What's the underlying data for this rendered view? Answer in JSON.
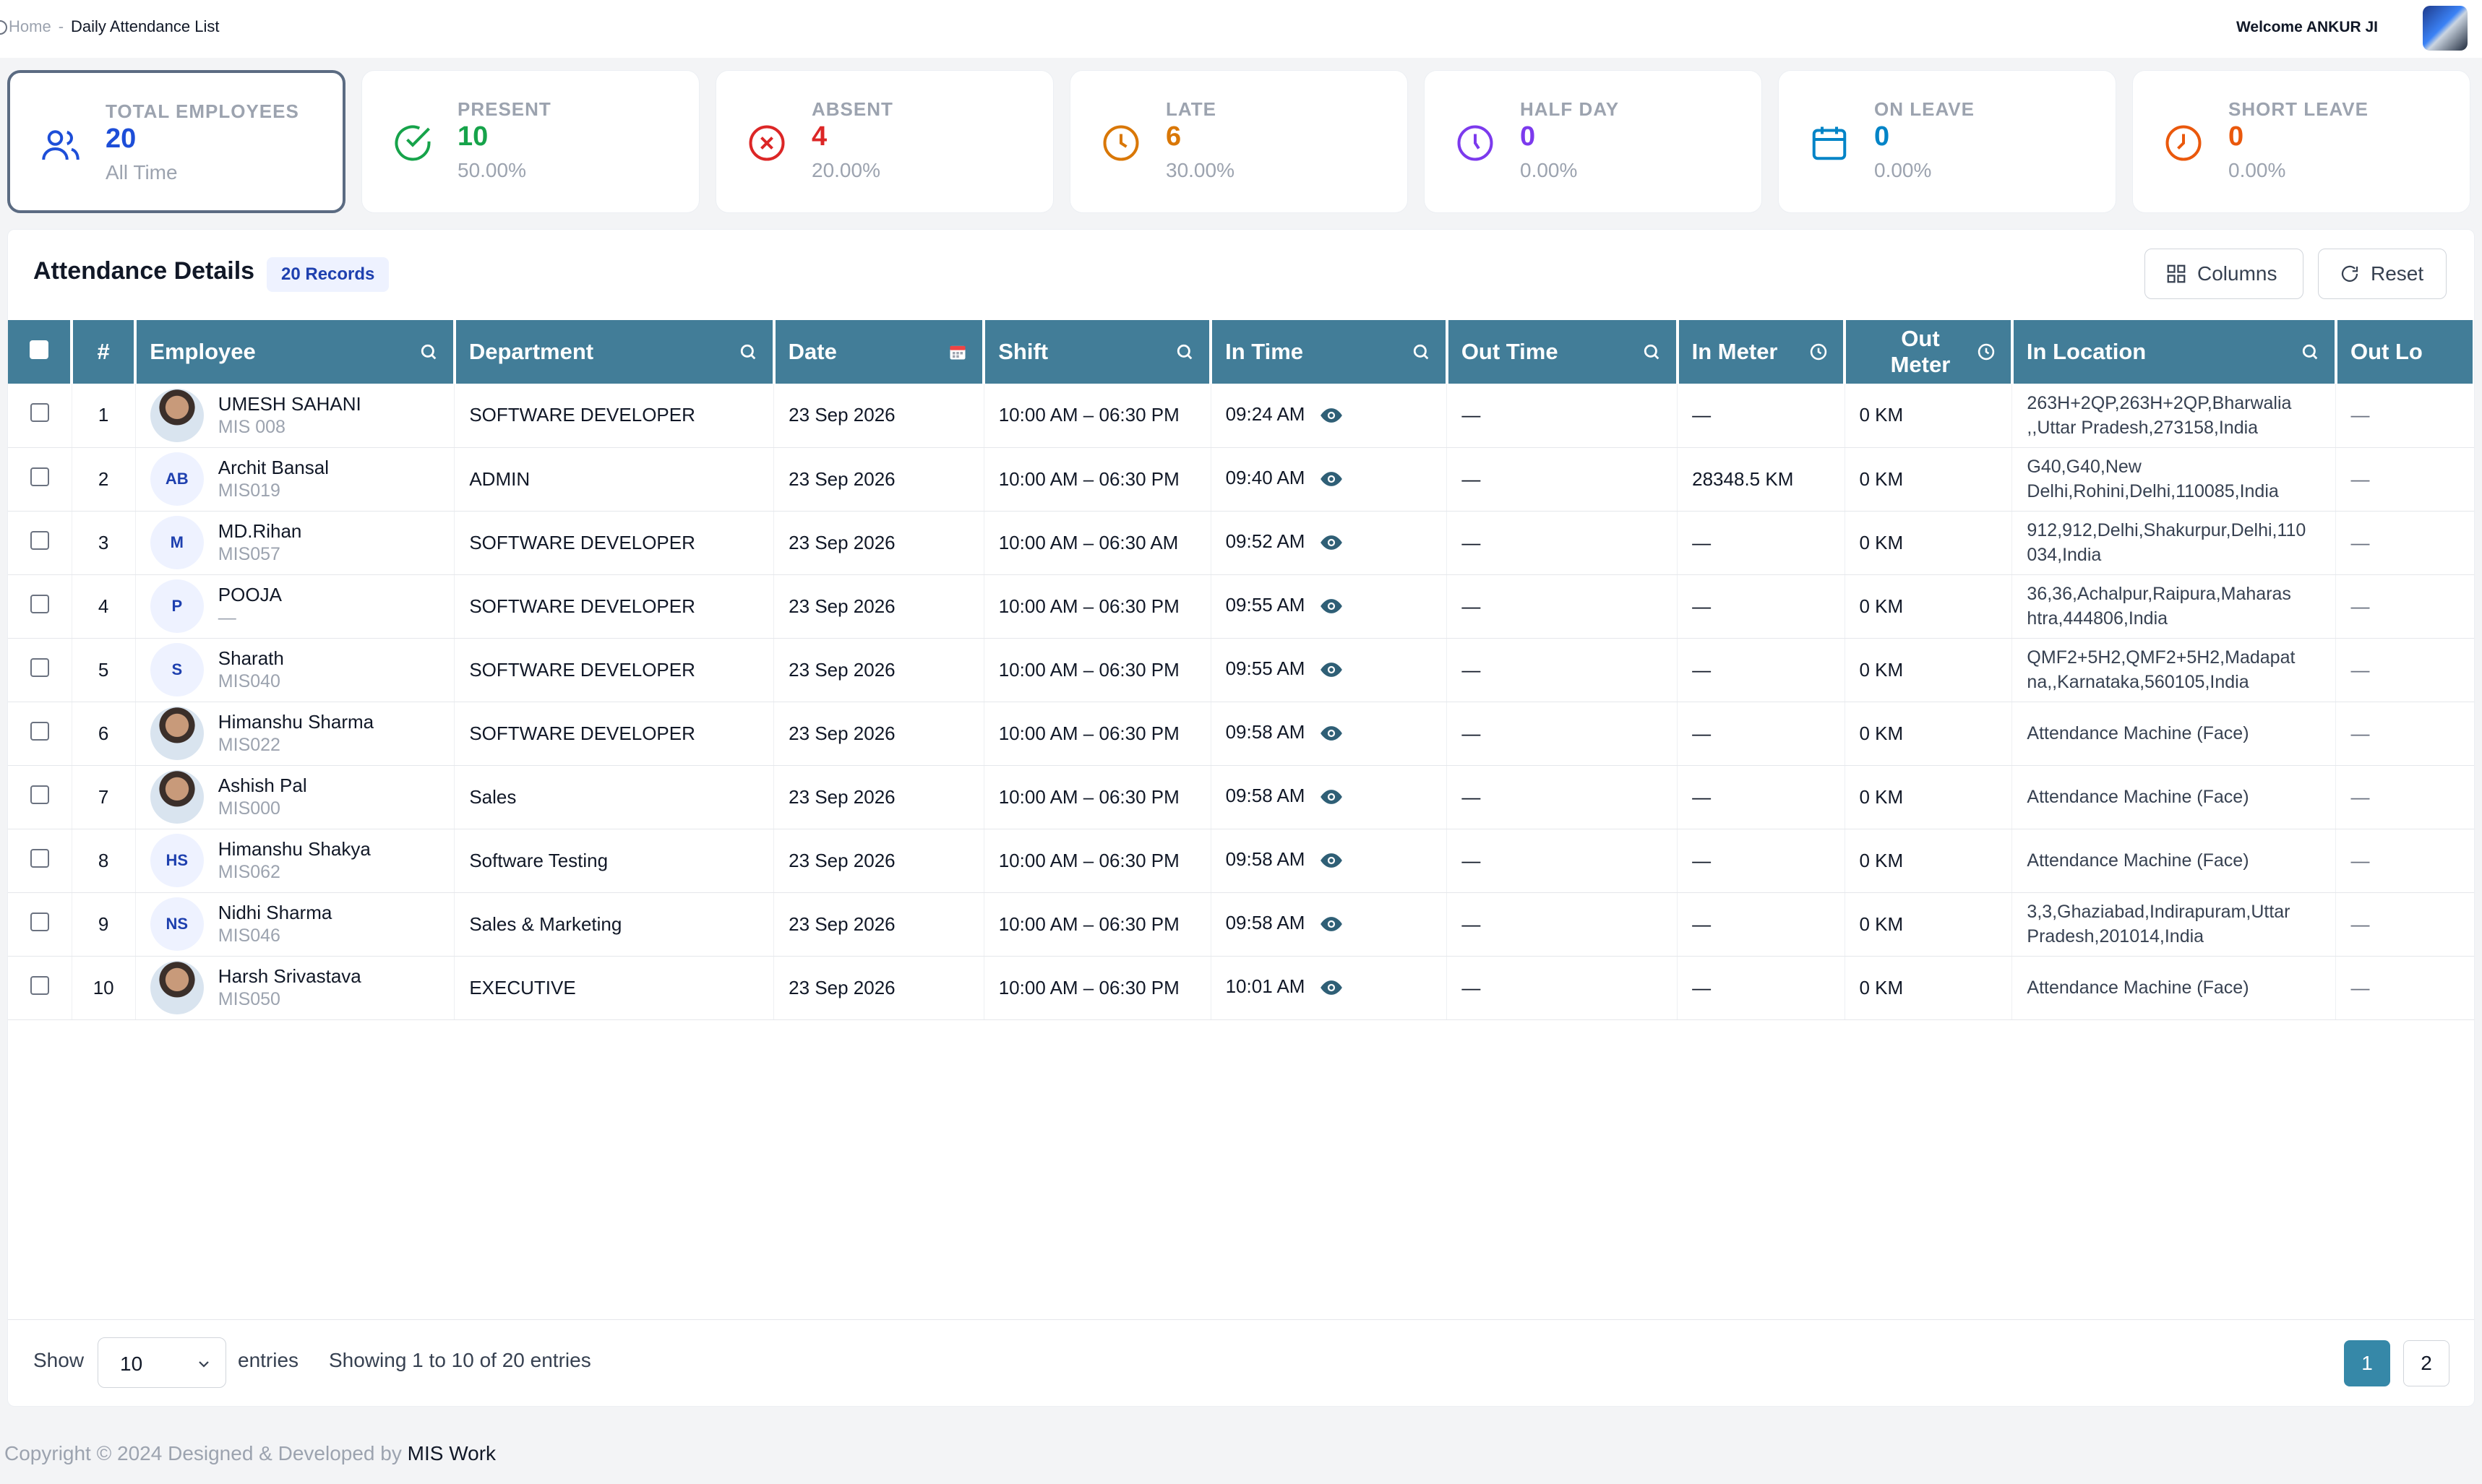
{
  "breadcrumb": {
    "home": "Home",
    "separator": "-",
    "current": "Daily Attendance List"
  },
  "header": {
    "welcome": "Welcome ANKUR JI"
  },
  "stats": [
    {
      "label": "TOTAL EMPLOYEES",
      "value": "20",
      "sub": "All Time",
      "color": "#1d4ed8",
      "icon": "users-icon"
    },
    {
      "label": "PRESENT",
      "value": "10",
      "sub": "50.00%",
      "color": "#16a34a",
      "icon": "check-circle-icon"
    },
    {
      "label": "ABSENT",
      "value": "4",
      "sub": "20.00%",
      "color": "#dc2626",
      "icon": "x-circle-icon"
    },
    {
      "label": "LATE",
      "value": "6",
      "sub": "30.00%",
      "color": "#d97706",
      "icon": "clock-icon"
    },
    {
      "label": "HALF DAY",
      "value": "0",
      "sub": "0.00%",
      "color": "#7c3aed",
      "icon": "half-day-clock-icon"
    },
    {
      "label": "ON LEAVE",
      "value": "0",
      "sub": "0.00%",
      "color": "#0284c7",
      "icon": "calendar-icon"
    },
    {
      "label": "SHORT LEAVE",
      "value": "0",
      "sub": "0.00%",
      "color": "#ea580c",
      "icon": "short-leave-clock-icon"
    }
  ],
  "panel": {
    "title": "Attendance Details",
    "records_badge": "20 Records",
    "columns_button": "Columns",
    "reset_button": "Reset"
  },
  "table": {
    "headers": {
      "num": "#",
      "employee": "Employee",
      "department": "Department",
      "date": "Date",
      "shift": "Shift",
      "in_time": "In Time",
      "out_time": "Out Time",
      "in_meter": "In Meter",
      "out_meter_1": "Out",
      "out_meter_2": "Meter",
      "in_location": "In Location",
      "out_location": "Out Lo"
    },
    "rows": [
      {
        "num": "1",
        "name": "UMESH SAHANI",
        "code": "MIS 008",
        "initials": "",
        "dept": "SOFTWARE DEVELOPER",
        "date": "23 Sep 2026",
        "shift": "10:00 AM – 06:30 PM",
        "in_time": "09:24 AM",
        "out_time": "—",
        "in_meter": "—",
        "out_meter": "0 KM",
        "in_location": "263H+2QP,263H+2QP,Bharwalia ,,Uttar Pradesh,273158,India",
        "out_location": "—"
      },
      {
        "num": "2",
        "name": "Archit Bansal",
        "code": "MIS019",
        "initials": "AB",
        "dept": "ADMIN",
        "date": "23 Sep 2026",
        "shift": "10:00 AM – 06:30 PM",
        "in_time": "09:40 AM",
        "out_time": "—",
        "in_meter": "28348.5 KM",
        "out_meter": "0 KM",
        "in_location": "G40,G40,New Delhi,Rohini,Delhi,110085,India",
        "out_location": "—"
      },
      {
        "num": "3",
        "name": "MD.Rihan",
        "code": "MIS057",
        "initials": "M",
        "dept": "SOFTWARE DEVELOPER",
        "date": "23 Sep 2026",
        "shift": "10:00 AM – 06:30 AM",
        "in_time": "09:52 AM",
        "out_time": "—",
        "in_meter": "—",
        "out_meter": "0 KM",
        "in_location": "912,912,Delhi,Shakurpur,Delhi,110 034,India",
        "out_location": "—"
      },
      {
        "num": "4",
        "name": "POOJA",
        "code": "—",
        "initials": "P",
        "dept": "SOFTWARE DEVELOPER",
        "date": "23 Sep 2026",
        "shift": "10:00 AM – 06:30 PM",
        "in_time": "09:55 AM",
        "out_time": "—",
        "in_meter": "—",
        "out_meter": "0 KM",
        "in_location": "36,36,Achalpur,Raipura,Maharas htra,444806,India",
        "out_location": "—"
      },
      {
        "num": "5",
        "name": "Sharath",
        "code": "MIS040",
        "initials": "S",
        "dept": "SOFTWARE DEVELOPER",
        "date": "23 Sep 2026",
        "shift": "10:00 AM – 06:30 PM",
        "in_time": "09:55 AM",
        "out_time": "—",
        "in_meter": "—",
        "out_meter": "0 KM",
        "in_location": "QMF2+5H2,QMF2+5H2,Madapat na,,Karnataka,560105,India",
        "out_location": "—"
      },
      {
        "num": "6",
        "name": "Himanshu Sharma",
        "code": "MIS022",
        "initials": "",
        "dept": "SOFTWARE DEVELOPER",
        "date": "23 Sep 2026",
        "shift": "10:00 AM – 06:30 PM",
        "in_time": "09:58 AM",
        "out_time": "—",
        "in_meter": "—",
        "out_meter": "0 KM",
        "in_location": "Attendance Machine (Face)",
        "out_location": "—"
      },
      {
        "num": "7",
        "name": "Ashish Pal",
        "code": "MIS000",
        "initials": "",
        "dept": "Sales",
        "date": "23 Sep 2026",
        "shift": "10:00 AM – 06:30 PM",
        "in_time": "09:58 AM",
        "out_time": "—",
        "in_meter": "—",
        "out_meter": "0 KM",
        "in_location": "Attendance Machine (Face)",
        "out_location": "—"
      },
      {
        "num": "8",
        "name": "Himanshu Shakya",
        "code": "MIS062",
        "initials": "HS",
        "dept": "Software Testing",
        "date": "23 Sep 2026",
        "shift": "10:00 AM – 06:30 PM",
        "in_time": "09:58 AM",
        "out_time": "—",
        "in_meter": "—",
        "out_meter": "0 KM",
        "in_location": "Attendance Machine (Face)",
        "out_location": "—"
      },
      {
        "num": "9",
        "name": "Nidhi Sharma",
        "code": "MIS046",
        "initials": "NS",
        "dept": "Sales & Marketing",
        "date": "23 Sep 2026",
        "shift": "10:00 AM – 06:30 PM",
        "in_time": "09:58 AM",
        "out_time": "—",
        "in_meter": "—",
        "out_meter": "0 KM",
        "in_location": "3,3,Ghaziabad,Indirapuram,Uttar Pradesh,201014,India",
        "out_location": "—"
      },
      {
        "num": "10",
        "name": "Harsh Srivastava",
        "code": "MIS050",
        "initials": "",
        "dept": "EXECUTIVE",
        "date": "23 Sep 2026",
        "shift": "10:00 AM – 06:30 PM",
        "in_time": "10:01 AM",
        "out_time": "—",
        "in_meter": "—",
        "out_meter": "0 KM",
        "in_location": "Attendance Machine (Face)",
        "out_location": "—"
      }
    ]
  },
  "pagination": {
    "show_label": "Show",
    "page_size": "10",
    "entries_label": "entries",
    "summary": "Showing 1 to 10 of 20 entries",
    "pages": [
      "1",
      "2"
    ]
  },
  "footer": {
    "copyright": "Copyright © 2024 Designed & Developed by",
    "brand": "MIS Work"
  },
  "colors": {
    "header_bg": "#427d98",
    "accent": "#3688a8"
  }
}
